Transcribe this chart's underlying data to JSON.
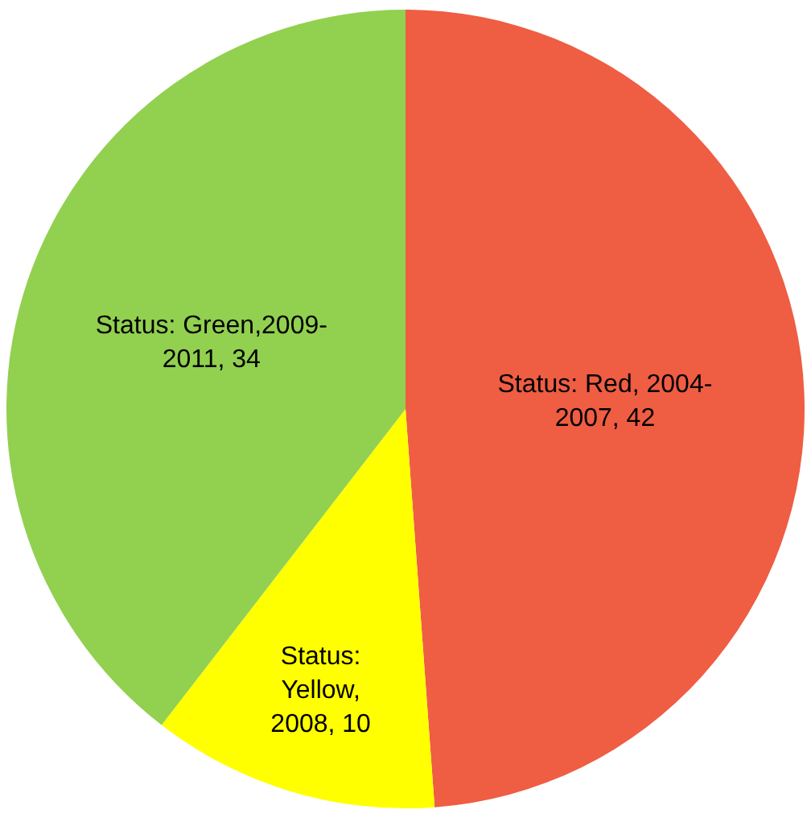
{
  "chart_data": {
    "type": "pie",
    "categories": [
      "Status: Red, 2004-2007, 42",
      "Status: Yellow, 2008, 10",
      "Status: Green,2009-2011, 34"
    ],
    "values": [
      42,
      10,
      34
    ],
    "colors": [
      "#ef5d43",
      "#ffff00",
      "#92d050"
    ],
    "legend": false
  }
}
